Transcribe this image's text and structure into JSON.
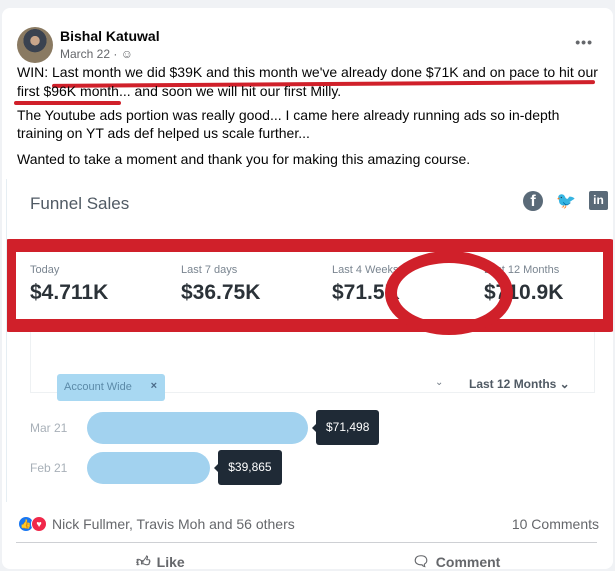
{
  "post": {
    "author": "Bishal Katuwal",
    "date": "March 22 ·",
    "more": "•••",
    "lines": [
      "WIN:  Last month we did $39K and this month we've already done $71K and on pace to hit our",
      "first $96K month... and soon we will hit our first Milly.",
      "The Youtube ads portion was really good... I came here already running ads so in-depth",
      "training on YT ads def helped us scale further...",
      "Wanted to take a moment and thank you for making this amazing course."
    ]
  },
  "annotation_color": "#d0202a",
  "dashboard": {
    "title": "Funnel Sales",
    "social": [
      "f",
      "t",
      "in"
    ],
    "stats": [
      {
        "label": "Today",
        "value": "$4.711K"
      },
      {
        "label": "Last 7 days",
        "value": "$36.75K"
      },
      {
        "label": "Last 4 Weeks",
        "value": "$71.5K"
      },
      {
        "label": "Last 12 Months",
        "value": "$710.9K"
      }
    ],
    "filter_chip": "Account Wide",
    "chip_close": "×",
    "chev": "⌄",
    "range": "Last 12 Months ⌄"
  },
  "chart_data": {
    "type": "bar",
    "orientation": "horizontal",
    "categories": [
      "Mar 21",
      "Feb 21"
    ],
    "values": [
      71498,
      39865
    ],
    "labels": [
      "$71,498",
      "$39,865"
    ],
    "color": "#a2d2ef"
  },
  "footer": {
    "reactions": "Nick Fullmer, Travis Moh and 56 others",
    "comments": "10 Comments",
    "like": "Like",
    "comment": "Comment"
  }
}
